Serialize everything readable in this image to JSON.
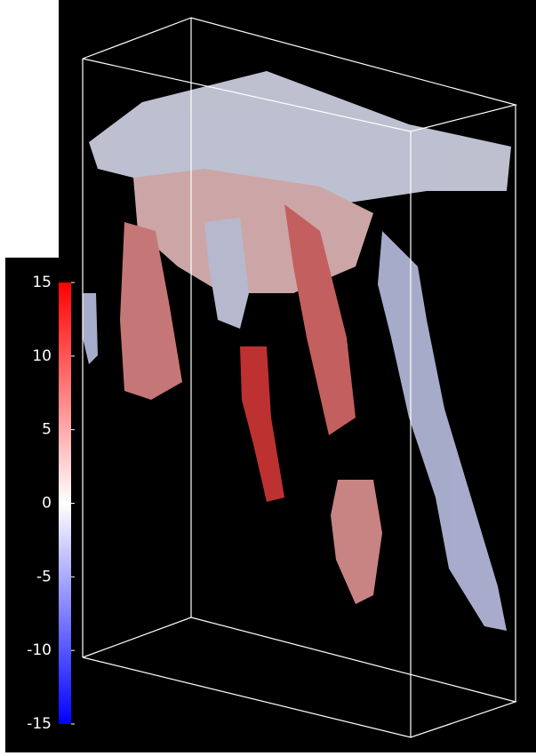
{
  "colorbar": {
    "lim": [
      -15,
      15
    ],
    "ticks": [
      15,
      10,
      5,
      0,
      -5,
      -10,
      -15
    ],
    "colors": [
      "#0000ff",
      "#ffffff",
      "#ff0000"
    ]
  }
}
